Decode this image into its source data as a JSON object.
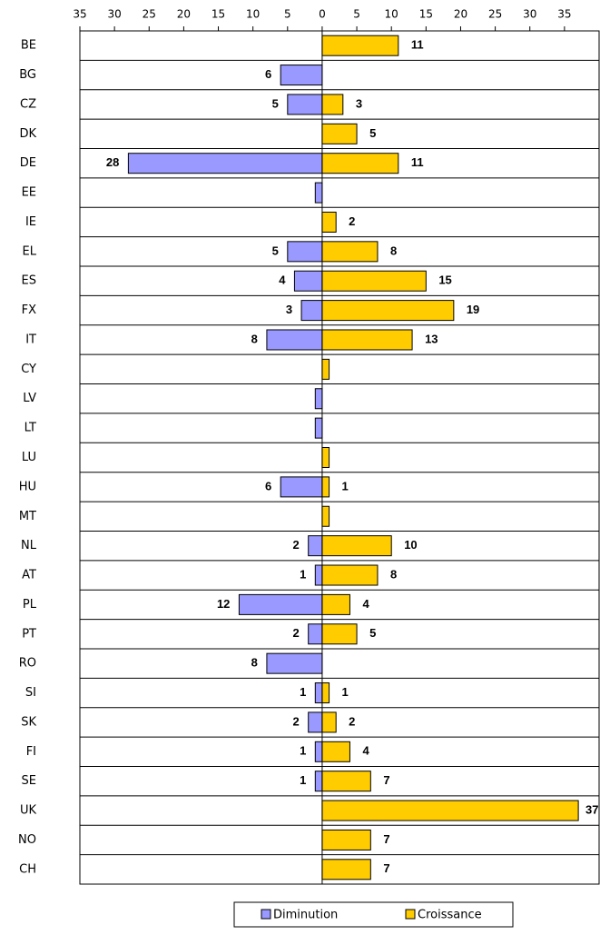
{
  "chart_data": {
    "type": "bar",
    "orientation": "horizontal",
    "categories": [
      "BE",
      "BG",
      "CZ",
      "DK",
      "DE",
      "EE",
      "IE",
      "EL",
      "ES",
      "FX",
      "IT",
      "CY",
      "LV",
      "LT",
      "LU",
      "HU",
      "MT",
      "NL",
      "AT",
      "PL",
      "PT",
      "RO",
      "SI",
      "SK",
      "FI",
      "SE",
      "UK",
      "NO",
      "CH"
    ],
    "series": [
      {
        "name": "Diminution",
        "color": "#9999ff",
        "values": [
          null,
          -6,
          -5,
          null,
          -28,
          -1,
          null,
          -5,
          -4,
          -3,
          -8,
          null,
          -1,
          -1,
          null,
          -6,
          null,
          -2,
          -1,
          -12,
          -2,
          -8,
          -1,
          -2,
          -1,
          -1,
          null,
          null,
          null
        ],
        "value_labels": [
          null,
          "6",
          "5",
          null,
          "28",
          null,
          null,
          "5",
          "4",
          "3",
          "8",
          null,
          null,
          null,
          null,
          "6",
          null,
          "2",
          "1",
          "12",
          "2",
          "8",
          "1",
          "2",
          "1",
          "1",
          null,
          null,
          null
        ]
      },
      {
        "name": "Croissance",
        "color": "#ffcc00",
        "values": [
          11,
          null,
          3,
          5,
          11,
          null,
          2,
          8,
          15,
          19,
          13,
          1,
          null,
          null,
          1,
          1,
          1,
          10,
          8,
          4,
          5,
          null,
          1,
          2,
          4,
          7,
          37,
          7,
          7
        ],
        "value_labels": [
          "11",
          null,
          "3",
          "5",
          "11",
          null,
          "2",
          "8",
          "15",
          "19",
          "13",
          null,
          null,
          null,
          null,
          "1",
          null,
          "10",
          "8",
          "4",
          "5",
          null,
          "1",
          "2",
          "4",
          "7",
          "37",
          "7",
          "7"
        ]
      }
    ],
    "xlim": [
      -35,
      40
    ],
    "xticks": [
      {
        "value": -35,
        "label": "35"
      },
      {
        "value": -30,
        "label": "30"
      },
      {
        "value": -25,
        "label": "25"
      },
      {
        "value": -20,
        "label": "20"
      },
      {
        "value": -15,
        "label": "15"
      },
      {
        "value": -10,
        "label": "10"
      },
      {
        "value": -5,
        "label": "5"
      },
      0,
      5,
      10,
      15,
      20,
      25,
      30,
      35
    ],
    "legend": "bottom"
  }
}
